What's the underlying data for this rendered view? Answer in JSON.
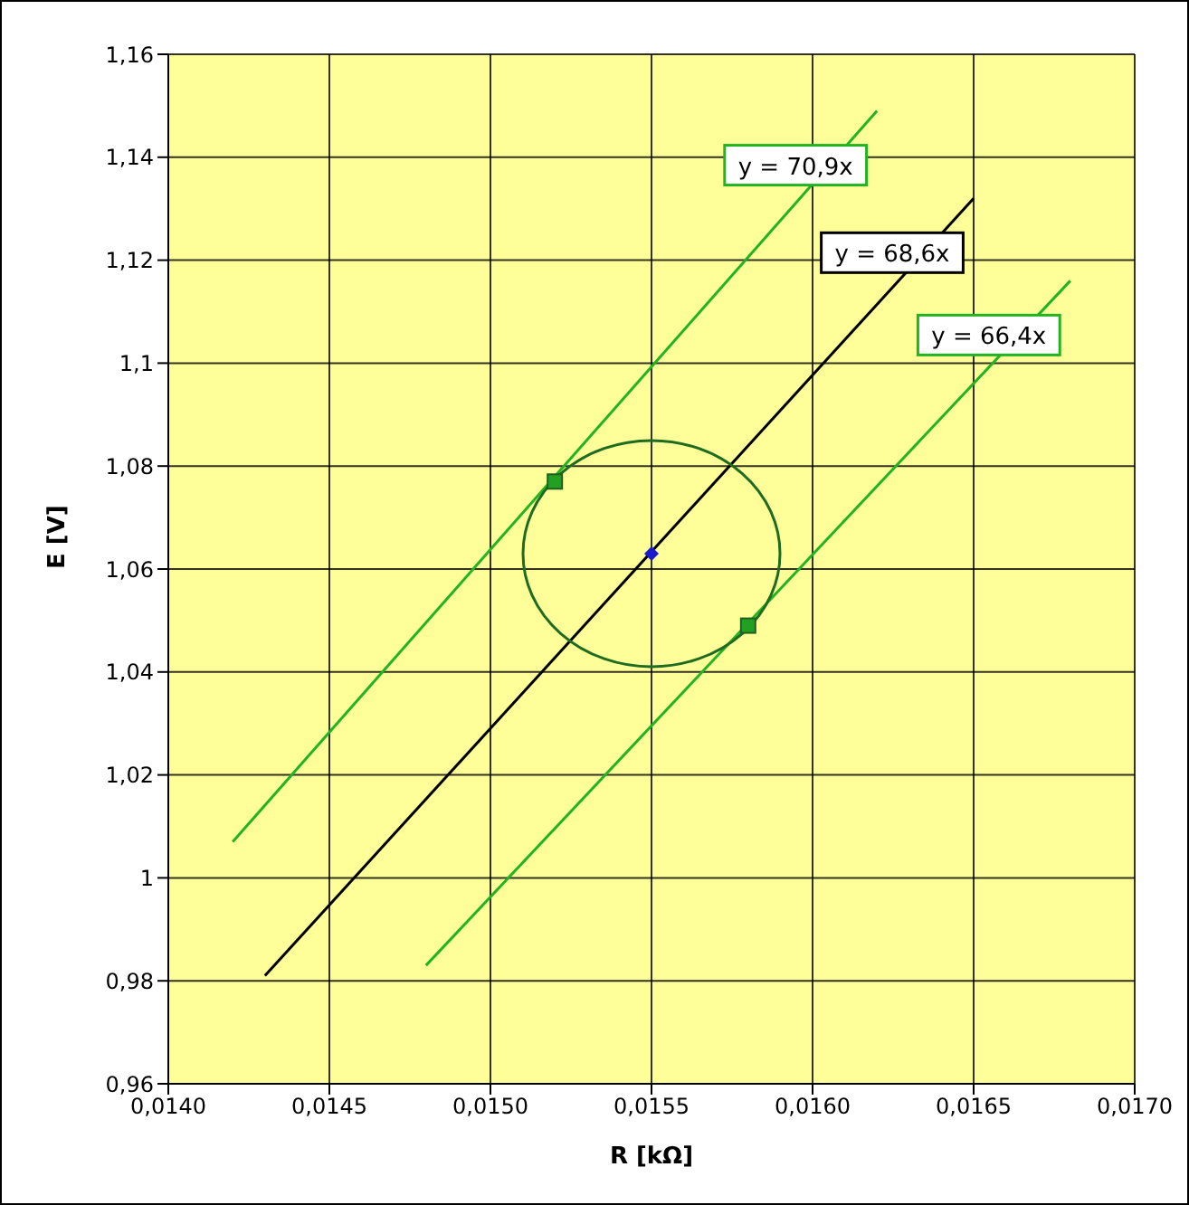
{
  "chart_data": {
    "type": "line",
    "xlabel": "R  [kΩ]",
    "ylabel": "E  [V]",
    "xlim": [
      0.014,
      0.017
    ],
    "xticks": [
      {
        "value": 0.014,
        "label": "0,0140"
      },
      {
        "value": 0.0145,
        "label": "0,0145"
      },
      {
        "value": 0.015,
        "label": "0,0150"
      },
      {
        "value": 0.0155,
        "label": "0,0155"
      },
      {
        "value": 0.016,
        "label": "0,0160"
      },
      {
        "value": 0.0165,
        "label": "0,0165"
      },
      {
        "value": 0.017,
        "label": "0,0170"
      }
    ],
    "ylim": [
      0.96,
      1.16
    ],
    "yticks": [
      {
        "value": 0.96,
        "label": "0,96"
      },
      {
        "value": 0.98,
        "label": "0,98"
      },
      1,
      {
        "value": 1.02,
        "label": "1,02"
      },
      {
        "value": 1.04,
        "label": "1,04"
      },
      {
        "value": 1.06,
        "label": "1,06"
      },
      {
        "value": 1.08,
        "label": "1,08"
      },
      {
        "value": 1.1,
        "label": "1,1"
      },
      {
        "value": 1.12,
        "label": "1,12"
      },
      {
        "value": 1.14,
        "label": "1,14"
      },
      {
        "value": 1.16,
        "label": "1,16"
      }
    ],
    "grid": true,
    "marker": "none",
    "line_style": "solid",
    "series": [
      {
        "color": "#22b322",
        "x": [
          0.0142,
          0.0162
        ],
        "values": [
          1.007,
          1.149
        ]
      },
      {
        "color": "#000000",
        "x": [
          0.0143,
          0.0165
        ],
        "values": [
          0.981,
          1.132
        ]
      },
      {
        "color": "#22b322",
        "x": [
          0.0148,
          0.0168
        ],
        "values": [
          0.983,
          1.116
        ]
      },
      {
        "type": "scatter",
        "color": "#22a022",
        "marker": "square",
        "x": [
          0.0152,
          0.0158
        ],
        "values": [
          1.077,
          1.049
        ]
      },
      {
        "type": "scatter",
        "color": "#1a1acc",
        "marker": "diamond",
        "x": [
          0.0155
        ],
        "values": [
          1.063
        ]
      }
    ],
    "annotations": [
      "y = 70,9x",
      "y = 68,6x",
      "y = 66,4x"
    ]
  }
}
